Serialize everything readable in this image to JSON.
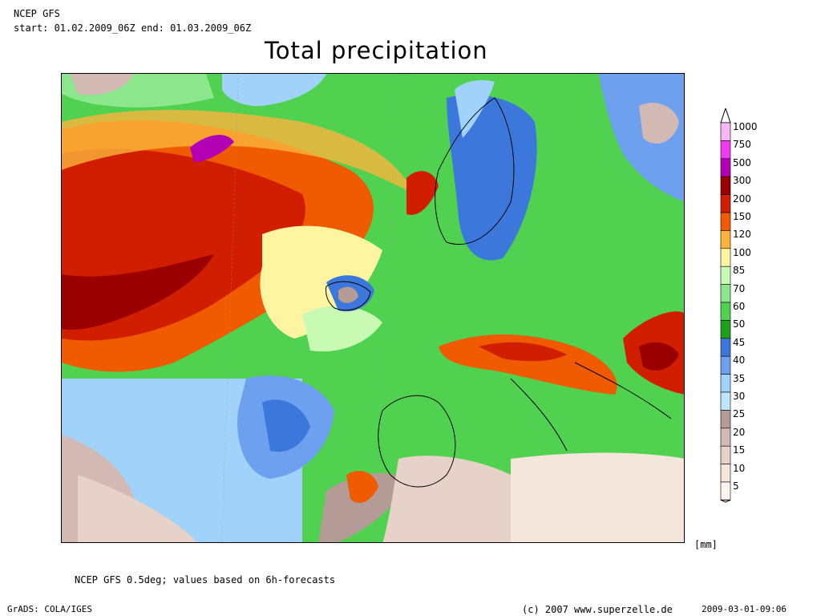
{
  "header": {
    "model": "NCEP GFS",
    "period": "start: 01.02.2009_06Z end: 01.03.2009_06Z",
    "title": "Total precipitation"
  },
  "footer": {
    "note": "NCEP GFS 0.5deg; values based on 6h-forecasts",
    "software": "GrADS: COLA/IGES",
    "copyright": "(c) 2007 www.superzelle.de",
    "timestamp": "2009-03-01-09:06"
  },
  "legend": {
    "unit": "[mm]",
    "levels": [
      {
        "label": "1000",
        "color": "#f5b8f5"
      },
      {
        "label": "750",
        "color": "#f03cf0"
      },
      {
        "label": "500",
        "color": "#b400b4"
      },
      {
        "label": "300",
        "color": "#9b0000"
      },
      {
        "label": "200",
        "color": "#d21e00"
      },
      {
        "label": "150",
        "color": "#f05a00"
      },
      {
        "label": "120",
        "color": "#fab43c"
      },
      {
        "label": "100",
        "color": "#fff5a0"
      },
      {
        "label": "85",
        "color": "#c8fab4"
      },
      {
        "label": "70",
        "color": "#8ce68c"
      },
      {
        "label": "60",
        "color": "#50d250"
      },
      {
        "label": "50",
        "color": "#1ea01e"
      },
      {
        "label": "45",
        "color": "#3c78dc"
      },
      {
        "label": "40",
        "color": "#6ea0f0"
      },
      {
        "label": "35",
        "color": "#a0d2fa"
      },
      {
        "label": "30",
        "color": "#bee6ff"
      },
      {
        "label": "25",
        "color": "#b49b96"
      },
      {
        "label": "20",
        "color": "#d2b9b4"
      },
      {
        "label": "15",
        "color": "#e6d2c8"
      },
      {
        "label": "10",
        "color": "#f5e6dc"
      },
      {
        "label": "5",
        "color": "#fff5ee"
      }
    ]
  }
}
